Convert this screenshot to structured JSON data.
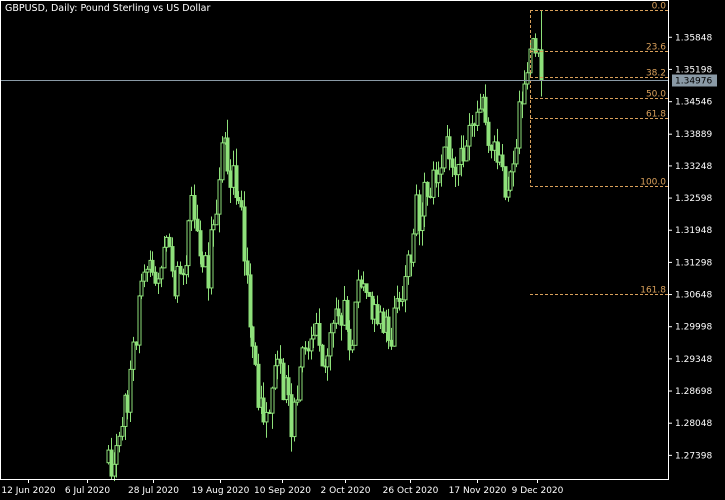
{
  "title": "GBPUSD, Daily:  Pound Sterling vs US Dollar",
  "chart_data": {
    "type": "candlestick",
    "symbol": "GBPUSD",
    "timeframe": "Daily",
    "description": "Pound Sterling vs US Dollar",
    "ylim": [
      1.269,
      1.365
    ],
    "y_ticks": [
      "1.35848",
      "1.35198",
      "1.34546",
      "1.33889",
      "1.33248",
      "1.32598",
      "1.31948",
      "1.31298",
      "1.30648",
      "1.29998",
      "1.29348",
      "1.28698",
      "1.28048",
      "1.27398"
    ],
    "x_ticks": [
      "12 Jun 2020",
      "6 Jul 2020",
      "28 Jul 2020",
      "19 Aug 2020",
      "10 Sep 2020",
      "2 Oct 2020",
      "26 Oct 2020",
      "17 Nov 2020",
      "9 Dec 2020"
    ],
    "current_price": "1.34976",
    "fibonacci": {
      "levels": [
        {
          "label": "0.0",
          "price": 1.364
        },
        {
          "label": "23.6",
          "price": 1.3557
        },
        {
          "label": "38.2",
          "price": 1.3505
        },
        {
          "label": "50.0",
          "price": 1.3463
        },
        {
          "label": "61.8",
          "price": 1.3421
        },
        {
          "label": "100.0",
          "price": 1.3285
        },
        {
          "label": "161.8",
          "price": 1.3066
        }
      ],
      "color": "#d9a05b"
    },
    "colors": {
      "candle": "#8ee07a",
      "background": "#000000",
      "grid": "none",
      "price_line": "#8a9aa6"
    },
    "anchors": [
      [
        1.266,
        1.276
      ],
      [
        1.271,
        1.279
      ],
      [
        1.278,
        1.288
      ],
      [
        1.291,
        1.299
      ],
      [
        1.306,
        1.311
      ],
      [
        1.308,
        1.315
      ],
      [
        1.307,
        1.314
      ],
      [
        1.313,
        1.32
      ],
      [
        1.306,
        1.312
      ],
      [
        1.307,
        1.313
      ],
      [
        1.321,
        1.33
      ],
      [
        1.311,
        1.32
      ],
      [
        1.307,
        1.315
      ],
      [
        1.322,
        1.333
      ],
      [
        1.332,
        1.344
      ],
      [
        1.325,
        1.336
      ],
      [
        1.315,
        1.326
      ],
      [
        1.298,
        1.307
      ],
      [
        1.283,
        1.292
      ],
      [
        1.276,
        1.286
      ],
      [
        1.29,
        1.299
      ],
      [
        1.285,
        1.293
      ],
      [
        1.275,
        1.284
      ],
      [
        1.289,
        1.298
      ],
      [
        1.293,
        1.3
      ],
      [
        1.296,
        1.305
      ],
      [
        1.29,
        1.299
      ],
      [
        1.295,
        1.304
      ],
      [
        1.3,
        1.309
      ],
      [
        1.29,
        1.298
      ],
      [
        1.304,
        1.311
      ],
      [
        1.302,
        1.31
      ],
      [
        1.301,
        1.309
      ],
      [
        1.295,
        1.303
      ],
      [
        1.296,
        1.304
      ],
      [
        1.303,
        1.311
      ],
      [
        1.31,
        1.319
      ],
      [
        1.317,
        1.327
      ],
      [
        1.321,
        1.33
      ],
      [
        1.327,
        1.335
      ],
      [
        1.33,
        1.339
      ],
      [
        1.333,
        1.341
      ],
      [
        1.329,
        1.337
      ],
      [
        1.332,
        1.34
      ],
      [
        1.335,
        1.344
      ],
      [
        1.338,
        1.347
      ],
      [
        1.33,
        1.338
      ],
      [
        1.333,
        1.341
      ],
      [
        1.322,
        1.33
      ],
      [
        1.332,
        1.342
      ],
      [
        1.343,
        1.353
      ],
      [
        1.354,
        1.362
      ],
      [
        1.347,
        1.353
      ]
    ]
  }
}
